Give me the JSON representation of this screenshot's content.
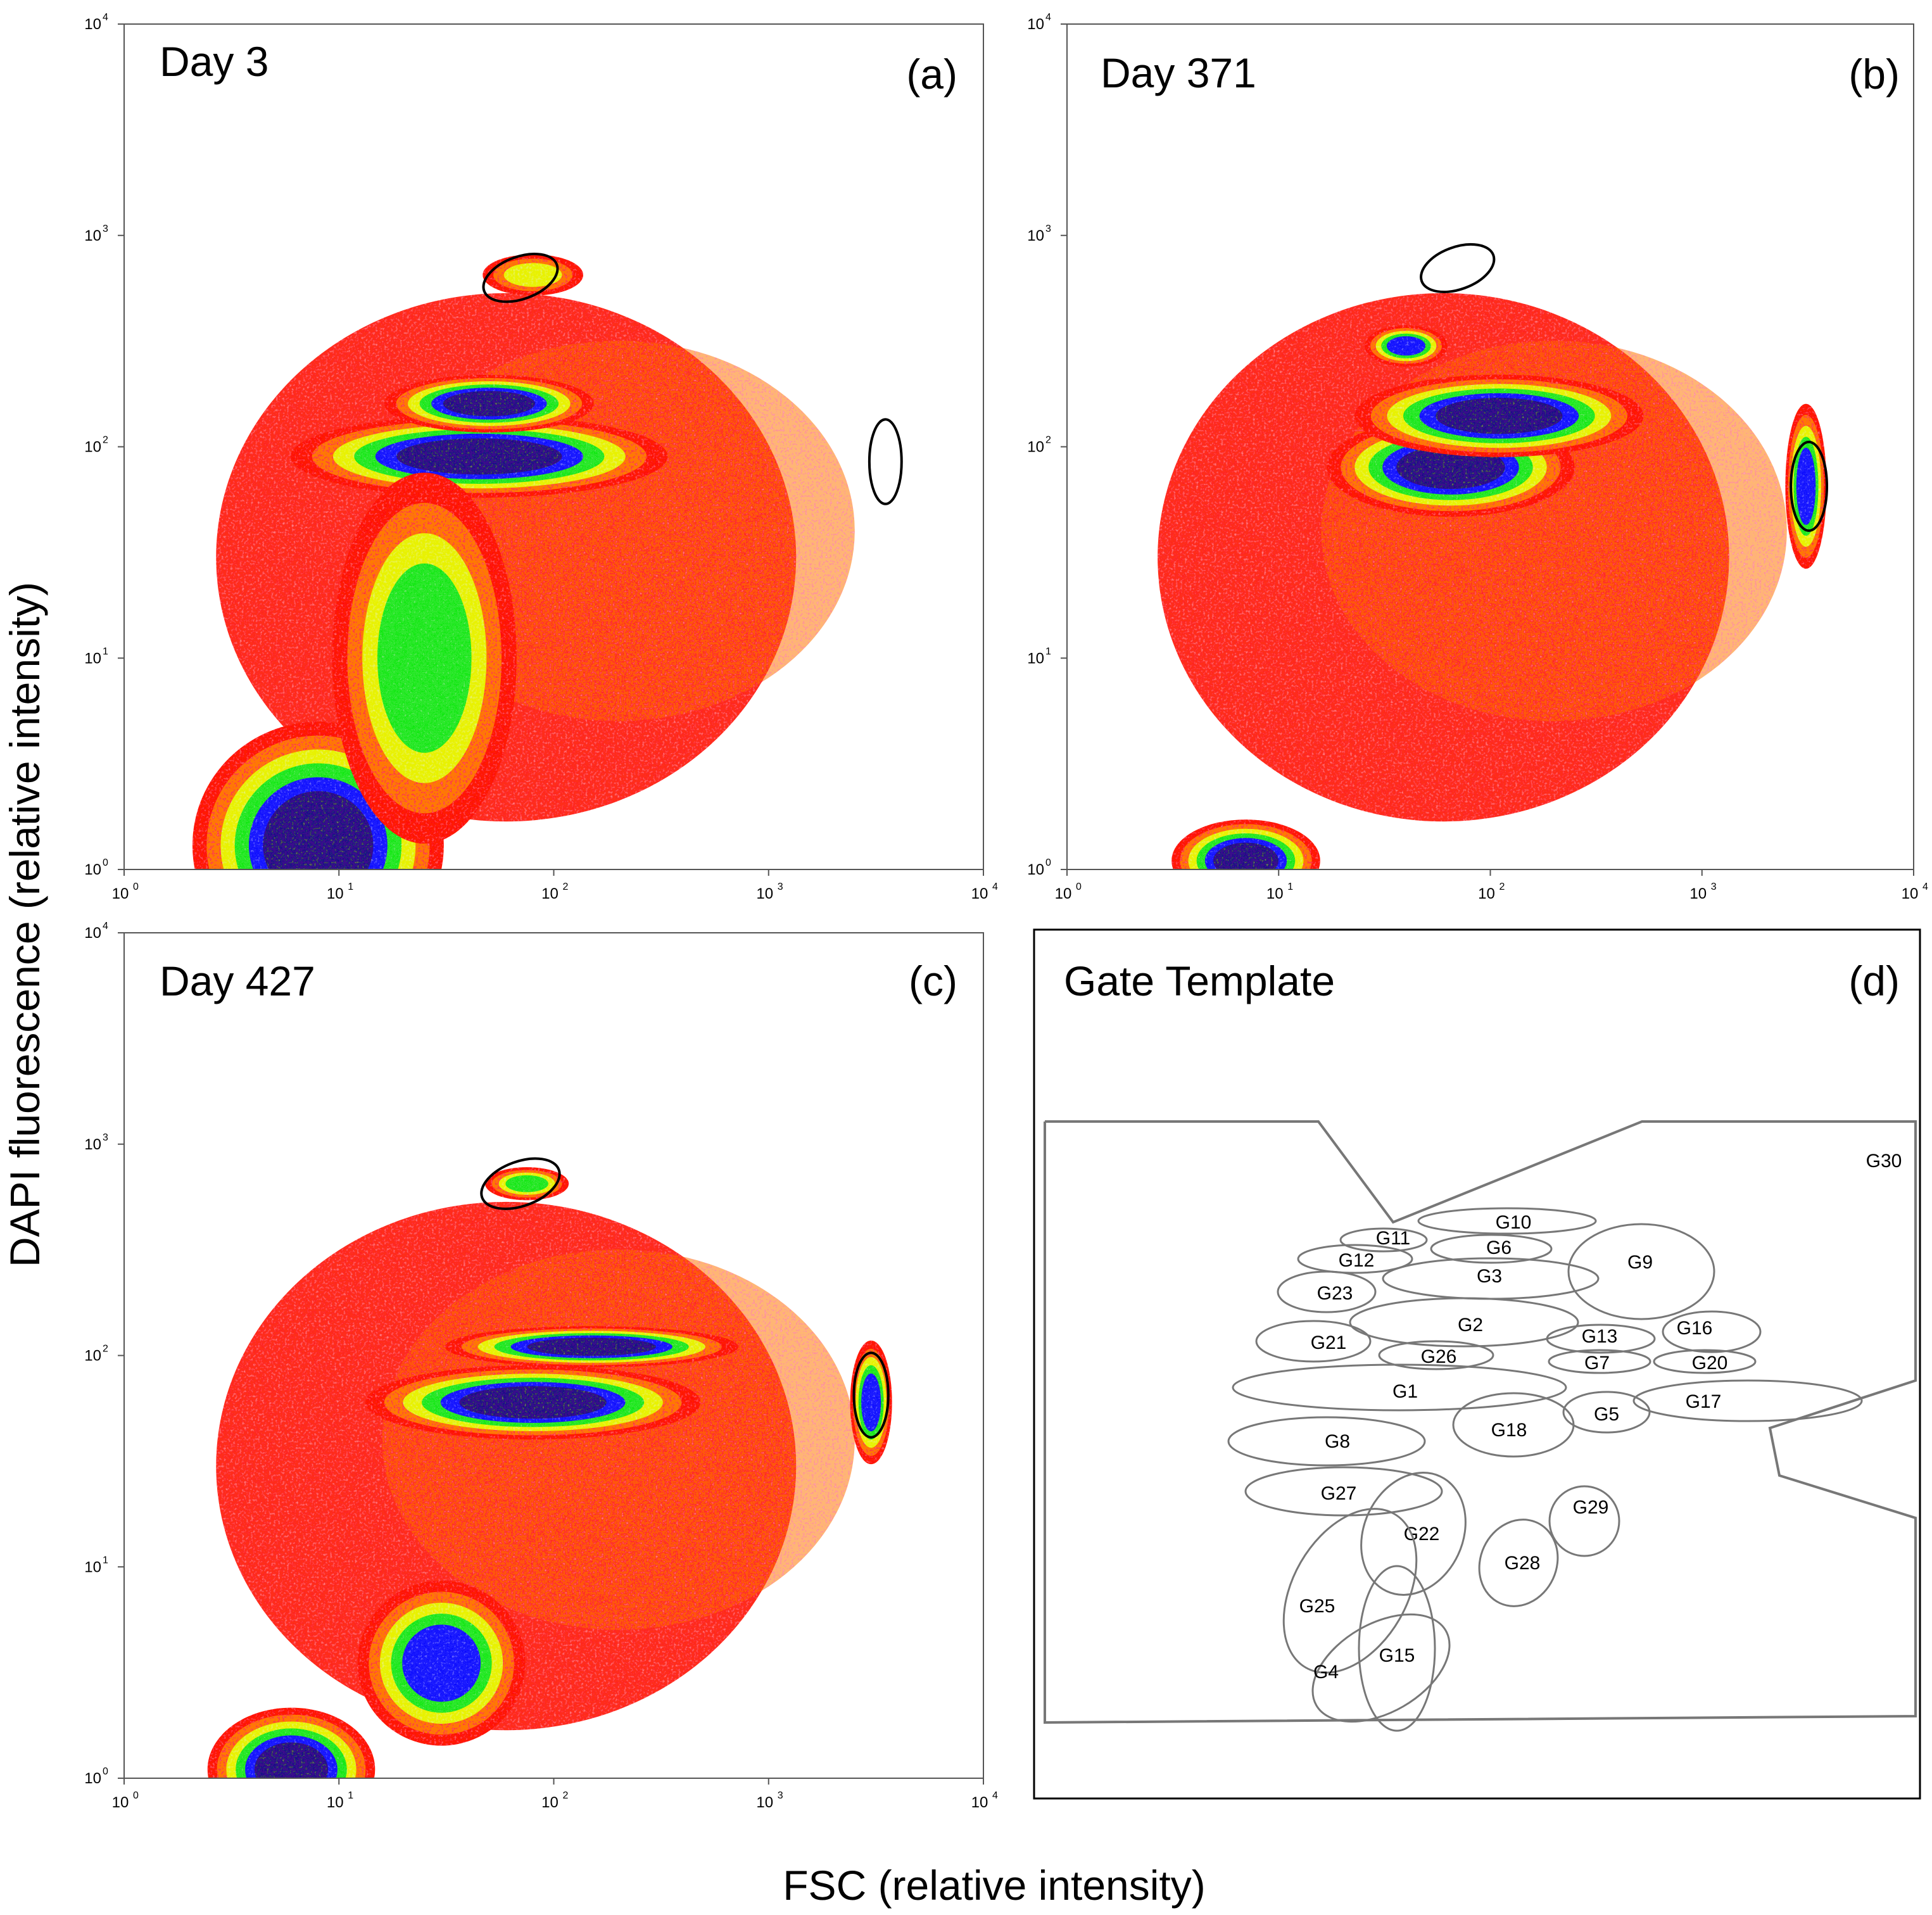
{
  "figure": {
    "ylabel": "DAPI fluorescence (relative intensity)",
    "xlabel": "FSC (relative intensity)"
  },
  "colors": {
    "low": "#ff1a00",
    "orange": "#ff7a00",
    "yellow": "#e8f200",
    "green": "#2ee82e",
    "blue": "#1a1aff",
    "high": "#3a0a8c",
    "gate_line": "#777777"
  },
  "chart_data": [
    {
      "type": "heatmap",
      "panel_label": "(a)",
      "title": "Day 3",
      "xscale": "log",
      "yscale": "log",
      "xlim": [
        1,
        10000
      ],
      "ylim": [
        1,
        10000
      ],
      "xticks": [
        "10",
        "10",
        "10",
        "10",
        "10"
      ],
      "xtick_exp": [
        "0",
        "1",
        "2",
        "3",
        "4"
      ],
      "yticks": [
        "10",
        "10",
        "10",
        "10",
        "10"
      ],
      "ytick_exp": [
        "0",
        "1",
        "2",
        "3",
        "4"
      ],
      "clusters": [
        {
          "fsc": 8,
          "dapi": 1.3,
          "level": 5,
          "sx": 0.3,
          "sy": 0.3
        },
        {
          "fsc": 45,
          "dapi": 90,
          "level": 5,
          "sx": 0.45,
          "sy": 0.1
        },
        {
          "fsc": 50,
          "dapi": 160,
          "level": 5,
          "sx": 0.25,
          "sy": 0.07
        },
        {
          "fsc": 25,
          "dapi": 10,
          "level": 3,
          "sx": 0.22,
          "sy": 0.45
        },
        {
          "fsc": 80,
          "dapi": 650,
          "level": 2,
          "sx": 0.12,
          "sy": 0.05
        }
      ],
      "gates": [
        {
          "fsc": 70,
          "dapi": 630,
          "w": 0.36,
          "h": 0.2,
          "angle": -20
        },
        {
          "fsc": 3500,
          "dapi": 85,
          "w": 0.15,
          "h": 0.4,
          "angle": 0
        }
      ]
    },
    {
      "type": "heatmap",
      "panel_label": "(b)",
      "title": "Day 371",
      "xscale": "log",
      "yscale": "log",
      "xlim": [
        1,
        10000
      ],
      "ylim": [
        1,
        10000
      ],
      "xticks": [
        "10",
        "10",
        "10",
        "10",
        "10"
      ],
      "xtick_exp": [
        "0",
        "1",
        "2",
        "3",
        "4"
      ],
      "yticks": [
        "10",
        "10",
        "10",
        "10",
        "10"
      ],
      "ytick_exp": [
        "0",
        "1",
        "2",
        "3",
        "4"
      ],
      "clusters": [
        {
          "fsc": 7,
          "dapi": 1.1,
          "level": 5,
          "sx": 0.18,
          "sy": 0.1
        },
        {
          "fsc": 65,
          "dapi": 80,
          "level": 5,
          "sx": 0.3,
          "sy": 0.12
        },
        {
          "fsc": 110,
          "dapi": 140,
          "level": 5,
          "sx": 0.35,
          "sy": 0.1
        },
        {
          "fsc": 40,
          "dapi": 300,
          "level": 4,
          "sx": 0.1,
          "sy": 0.05
        },
        {
          "fsc": 3100,
          "dapi": 65,
          "level": 4,
          "sx": 0.05,
          "sy": 0.2
        }
      ],
      "gates": [
        {
          "fsc": 70,
          "dapi": 700,
          "w": 0.36,
          "h": 0.2,
          "angle": -20
        },
        {
          "fsc": 3200,
          "dapi": 65,
          "w": 0.17,
          "h": 0.42,
          "angle": 0
        }
      ]
    },
    {
      "type": "heatmap",
      "panel_label": "(c)",
      "title": "Day 427",
      "xscale": "log",
      "yscale": "log",
      "xlim": [
        1,
        10000
      ],
      "ylim": [
        1,
        10000
      ],
      "xticks": [
        "10",
        "10",
        "10",
        "10",
        "10"
      ],
      "xtick_exp": [
        "0",
        "1",
        "2",
        "3",
        "4"
      ],
      "yticks": [
        "10",
        "10",
        "10",
        "10",
        "10"
      ],
      "ytick_exp": [
        "0",
        "1",
        "2",
        "3",
        "4"
      ],
      "clusters": [
        {
          "fsc": 6,
          "dapi": 1.1,
          "level": 5,
          "sx": 0.2,
          "sy": 0.15
        },
        {
          "fsc": 30,
          "dapi": 3.5,
          "level": 4,
          "sx": 0.2,
          "sy": 0.2
        },
        {
          "fsc": 80,
          "dapi": 60,
          "level": 5,
          "sx": 0.4,
          "sy": 0.09
        },
        {
          "fsc": 150,
          "dapi": 110,
          "level": 5,
          "sx": 0.35,
          "sy": 0.05
        },
        {
          "fsc": 3000,
          "dapi": 60,
          "level": 4,
          "sx": 0.05,
          "sy": 0.15
        },
        {
          "fsc": 75,
          "dapi": 650,
          "level": 3,
          "sx": 0.1,
          "sy": 0.04
        }
      ],
      "gates": [
        {
          "fsc": 70,
          "dapi": 650,
          "w": 0.38,
          "h": 0.21,
          "angle": -20
        },
        {
          "fsc": 3000,
          "dapi": 65,
          "w": 0.16,
          "h": 0.4,
          "angle": 0
        }
      ]
    },
    {
      "type": "diagram",
      "panel_label": "(d)",
      "title": "Gate Template",
      "gates": [
        "G1",
        "G2",
        "G3",
        "G4",
        "G5",
        "G6",
        "G7",
        "G8",
        "G9",
        "G10",
        "G11",
        "G12",
        "G13",
        "G15",
        "G16",
        "G17",
        "G18",
        "G20",
        "G21",
        "G22",
        "G23",
        "G25",
        "G26",
        "G27",
        "G28",
        "G29",
        "G30"
      ]
    }
  ]
}
